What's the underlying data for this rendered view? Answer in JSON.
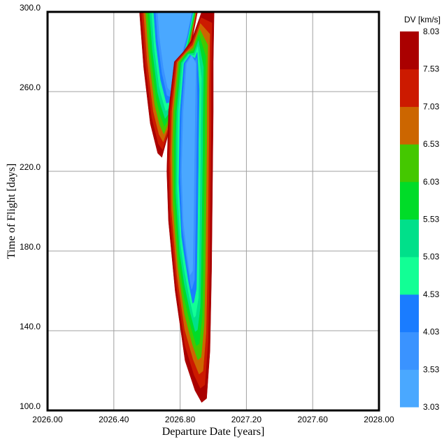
{
  "chart_data": {
    "type": "heatmap",
    "subtype": "porkchop-contour",
    "xlabel": "Departure Date [years]",
    "ylabel": "Time of Flight [days]",
    "xlim": [
      2026.0,
      2028.0
    ],
    "ylim": [
      100.0,
      300.0
    ],
    "x_ticks": [
      "2026.00",
      "2026.40",
      "2026.80",
      "2027.20",
      "2027.60",
      "2028.00"
    ],
    "y_ticks": [
      "100.0",
      "140.0",
      "180.0",
      "220.0",
      "260.0",
      "300.0"
    ],
    "grid": true,
    "colorbar": {
      "title": "DV [km/s]",
      "ticks": [
        "3.03",
        "3.53",
        "4.03",
        "4.53",
        "5.03",
        "5.53",
        "6.03",
        "6.53",
        "7.03",
        "7.53",
        "8.03"
      ],
      "levels": [
        3.03,
        3.53,
        4.03,
        4.53,
        5.03,
        5.53,
        6.03,
        6.53,
        7.03,
        7.53,
        8.03
      ],
      "colors": [
        "#4aa8ff",
        "#3a93ff",
        "#1a7cff",
        "#12ff95",
        "#00e08a",
        "#00dc28",
        "#44c800",
        "#cc6600",
        "#cc1a00",
        "#aa0000"
      ]
    },
    "upper_region": {
      "tip_x": 2026.68,
      "tip_y": 228,
      "pinch_x": 2026.84,
      "pinch_y": 262,
      "left_at_top": 2026.56,
      "right_at_top": 2026.92,
      "min_dv": 3.53
    },
    "lower_region": {
      "tip_x": 2026.94,
      "tip_y": 104,
      "pinch_x": 2026.8,
      "pinch_y": 275,
      "left_at_195": 2026.75,
      "right_at_top": 2027.0,
      "min_dv": 3.53
    }
  }
}
